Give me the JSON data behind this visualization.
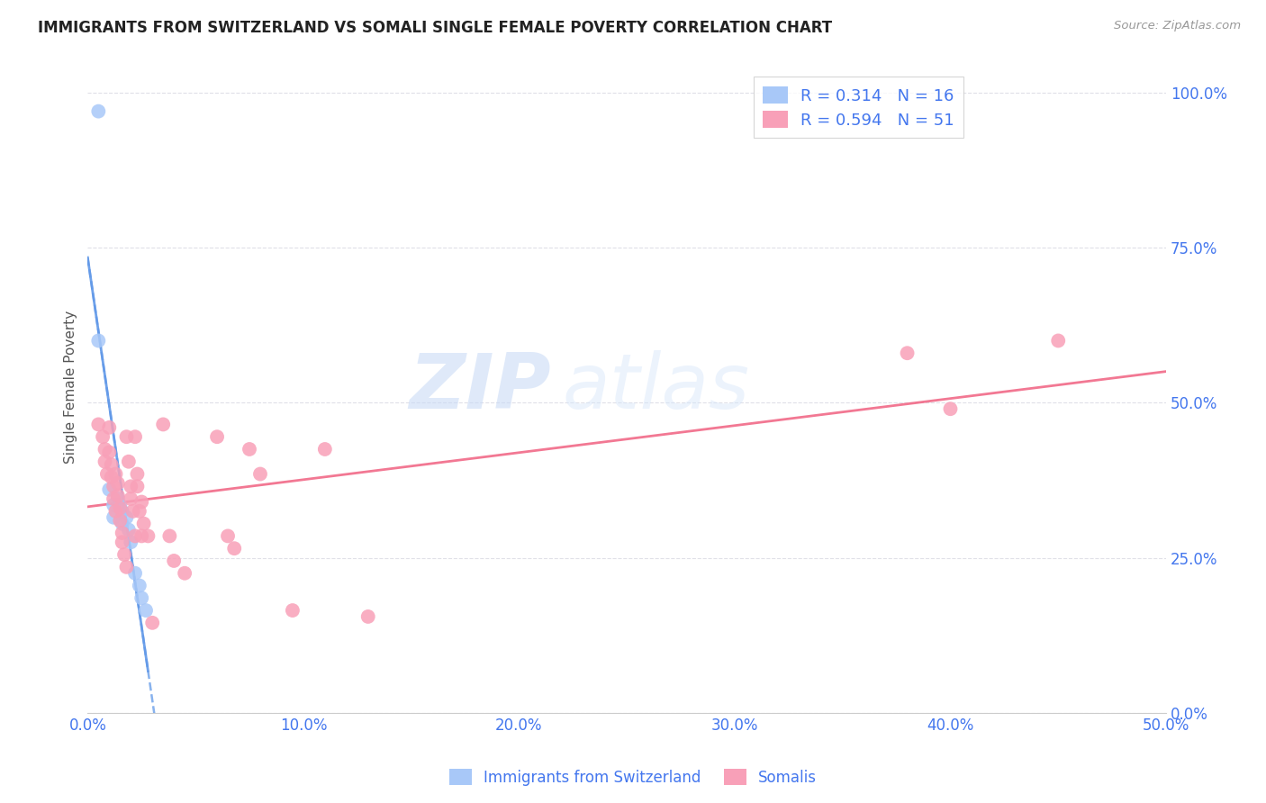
{
  "title": "IMMIGRANTS FROM SWITZERLAND VS SOMALI SINGLE FEMALE POVERTY CORRELATION CHART",
  "source": "Source: ZipAtlas.com",
  "ylabel": "Single Female Poverty",
  "xlim": [
    0.0,
    0.5
  ],
  "ylim": [
    0.0,
    1.05
  ],
  "yticks": [
    0.0,
    0.25,
    0.5,
    0.75,
    1.0
  ],
  "xticks": [
    0.0,
    0.1,
    0.2,
    0.3,
    0.4,
    0.5
  ],
  "swiss_R": 0.314,
  "swiss_N": 16,
  "somali_R": 0.594,
  "somali_N": 51,
  "swiss_color": "#a8c8f8",
  "somali_color": "#f8a0b8",
  "swiss_line_color": "#6098e8",
  "somali_line_color": "#f06080",
  "watermark_zip": "ZIP",
  "watermark_atlas": "atlas",
  "background_color": "#ffffff",
  "grid_color": "#e0e0e8",
  "axis_label_color": "#4477ee",
  "swiss_points": [
    [
      0.005,
      0.97
    ],
    [
      0.005,
      0.6
    ],
    [
      0.01,
      0.36
    ],
    [
      0.012,
      0.335
    ],
    [
      0.012,
      0.315
    ],
    [
      0.014,
      0.345
    ],
    [
      0.015,
      0.335
    ],
    [
      0.016,
      0.325
    ],
    [
      0.016,
      0.305
    ],
    [
      0.018,
      0.315
    ],
    [
      0.019,
      0.295
    ],
    [
      0.02,
      0.275
    ],
    [
      0.022,
      0.225
    ],
    [
      0.024,
      0.205
    ],
    [
      0.025,
      0.185
    ],
    [
      0.027,
      0.165
    ]
  ],
  "somali_points": [
    [
      0.005,
      0.465
    ],
    [
      0.007,
      0.445
    ],
    [
      0.008,
      0.425
    ],
    [
      0.008,
      0.405
    ],
    [
      0.009,
      0.385
    ],
    [
      0.01,
      0.46
    ],
    [
      0.01,
      0.42
    ],
    [
      0.011,
      0.4
    ],
    [
      0.011,
      0.38
    ],
    [
      0.012,
      0.365
    ],
    [
      0.012,
      0.345
    ],
    [
      0.013,
      0.325
    ],
    [
      0.013,
      0.385
    ],
    [
      0.014,
      0.37
    ],
    [
      0.014,
      0.35
    ],
    [
      0.015,
      0.33
    ],
    [
      0.015,
      0.31
    ],
    [
      0.016,
      0.29
    ],
    [
      0.016,
      0.275
    ],
    [
      0.017,
      0.255
    ],
    [
      0.018,
      0.235
    ],
    [
      0.018,
      0.445
    ],
    [
      0.019,
      0.405
    ],
    [
      0.02,
      0.365
    ],
    [
      0.02,
      0.345
    ],
    [
      0.021,
      0.325
    ],
    [
      0.022,
      0.285
    ],
    [
      0.022,
      0.445
    ],
    [
      0.023,
      0.385
    ],
    [
      0.023,
      0.365
    ],
    [
      0.024,
      0.325
    ],
    [
      0.025,
      0.285
    ],
    [
      0.025,
      0.34
    ],
    [
      0.026,
      0.305
    ],
    [
      0.028,
      0.285
    ],
    [
      0.03,
      0.145
    ],
    [
      0.035,
      0.465
    ],
    [
      0.038,
      0.285
    ],
    [
      0.04,
      0.245
    ],
    [
      0.045,
      0.225
    ],
    [
      0.06,
      0.445
    ],
    [
      0.065,
      0.285
    ],
    [
      0.068,
      0.265
    ],
    [
      0.075,
      0.425
    ],
    [
      0.08,
      0.385
    ],
    [
      0.095,
      0.165
    ],
    [
      0.11,
      0.425
    ],
    [
      0.13,
      0.155
    ],
    [
      0.38,
      0.58
    ],
    [
      0.4,
      0.49
    ],
    [
      0.45,
      0.6
    ]
  ]
}
